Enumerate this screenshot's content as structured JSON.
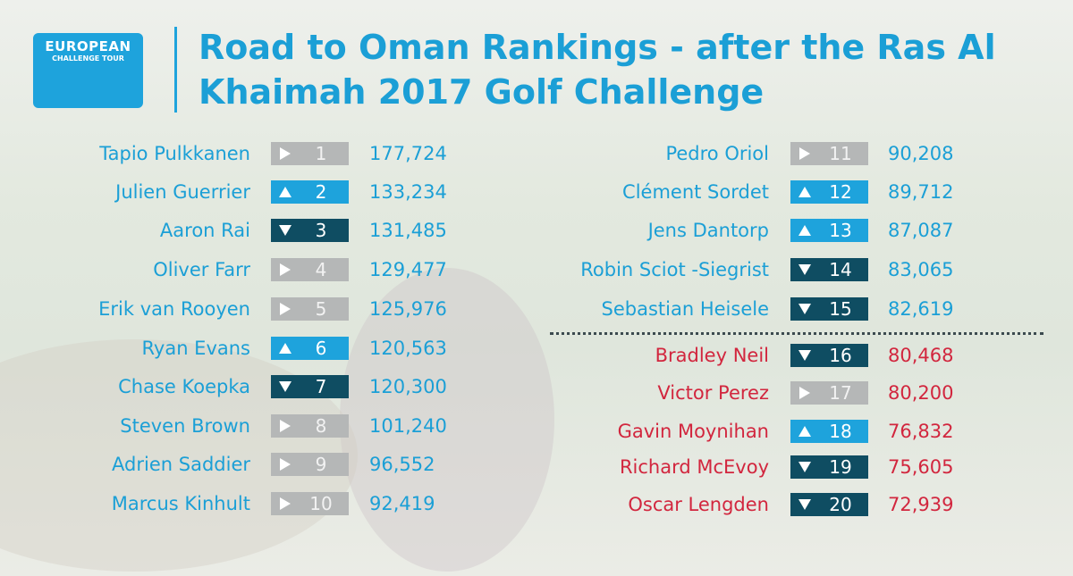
{
  "logo": {
    "line1": "EUROPEAN",
    "line2": "CHALLENGE TOUR"
  },
  "title": "Road to Oman Rankings - after the Ras Al Khaimah 2017 Golf Challenge",
  "rankings": {
    "left": [
      {
        "name": "Tapio Pulkkanen",
        "movement": "same",
        "rank": 1,
        "points": "177,724",
        "color": "#1b9fd6"
      },
      {
        "name": "Julien Guerrier",
        "movement": "up",
        "rank": 2,
        "points": "133,234",
        "color": "#1b9fd6"
      },
      {
        "name": "Aaron Rai",
        "movement": "down",
        "rank": 3,
        "points": "131,485",
        "color": "#1b9fd6"
      },
      {
        "name": "Oliver Farr",
        "movement": "same",
        "rank": 4,
        "points": "129,477",
        "color": "#1b9fd6"
      },
      {
        "name": "Erik van Rooyen",
        "movement": "same",
        "rank": 5,
        "points": "125,976",
        "color": "#1b9fd6"
      },
      {
        "name": "Ryan Evans",
        "movement": "up",
        "rank": 6,
        "points": "120,563",
        "color": "#1b9fd6"
      },
      {
        "name": "Chase Koepka",
        "movement": "down",
        "rank": 7,
        "points": "120,300",
        "color": "#1b9fd6"
      },
      {
        "name": "Steven Brown",
        "movement": "same",
        "rank": 8,
        "points": "101,240",
        "color": "#1b9fd6"
      },
      {
        "name": "Adrien Saddier",
        "movement": "same",
        "rank": 9,
        "points": "96,552",
        "color": "#1b9fd6"
      },
      {
        "name": "Marcus Kinhult",
        "movement": "same",
        "rank": 10,
        "points": "92,419",
        "color": "#1b9fd6"
      }
    ],
    "right": [
      {
        "name": "Pedro Oriol",
        "movement": "same",
        "rank": 11,
        "points": "90,208",
        "color": "#1b9fd6"
      },
      {
        "name": "Clément Sordet",
        "movement": "up",
        "rank": 12,
        "points": "89,712",
        "color": "#1b9fd6"
      },
      {
        "name": "Jens Dantorp",
        "movement": "up",
        "rank": 13,
        "points": "87,087",
        "color": "#1b9fd6"
      },
      {
        "name": "Robin Sciot -Siegrist",
        "movement": "down",
        "rank": 14,
        "points": "83,065",
        "color": "#1b9fd6"
      },
      {
        "name": "Sebastian Heisele",
        "movement": "down",
        "rank": 15,
        "points": "82,619",
        "color": "#1b9fd6"
      },
      {
        "name": "Bradley Neil",
        "movement": "down",
        "rank": 16,
        "points": "80,468",
        "color": "#d2263e"
      },
      {
        "name": "Victor Perez",
        "movement": "same",
        "rank": 17,
        "points": "80,200",
        "color": "#d2263e"
      },
      {
        "name": "Gavin Moynihan",
        "movement": "up",
        "rank": 18,
        "points": "76,832",
        "color": "#d2263e"
      },
      {
        "name": "Richard McEvoy",
        "movement": "down",
        "rank": 19,
        "points": "75,605",
        "color": "#d2263e"
      },
      {
        "name": "Oscar Lengden",
        "movement": "down",
        "rank": 20,
        "points": "72,939",
        "color": "#d2263e"
      }
    ]
  }
}
